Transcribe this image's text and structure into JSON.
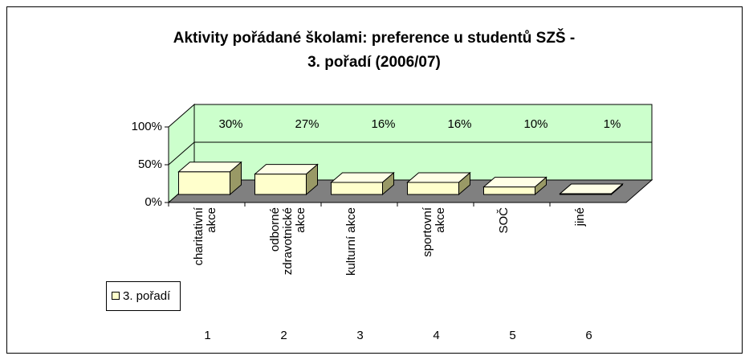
{
  "chart_data": {
    "type": "bar3d",
    "title": [
      "Aktivity pořádané školami: preference u studentů SZŠ -",
      "3. pořadí (2006/07)"
    ],
    "categories": [
      "charitativní akce",
      "odborné zdravotnické akce",
      "kulturní akce",
      "sportovní akce",
      "SOČ",
      "jiné"
    ],
    "category_numbers": [
      1,
      2,
      3,
      4,
      5,
      6
    ],
    "series": [
      {
        "name": "3. pořadí",
        "color": "#ffffcc",
        "values": [
          30,
          27,
          16,
          16,
          10,
          1
        ],
        "value_labels": [
          "30%",
          "27%",
          "16%",
          "16%",
          "10%",
          "1%"
        ]
      }
    ],
    "ylim": [
      0,
      100
    ],
    "yticks": [
      {
        "value": 0,
        "label": "0%"
      },
      {
        "value": 50,
        "label": "50%"
      },
      {
        "value": 100,
        "label": "100%"
      }
    ],
    "grid": true,
    "legend": "left"
  }
}
